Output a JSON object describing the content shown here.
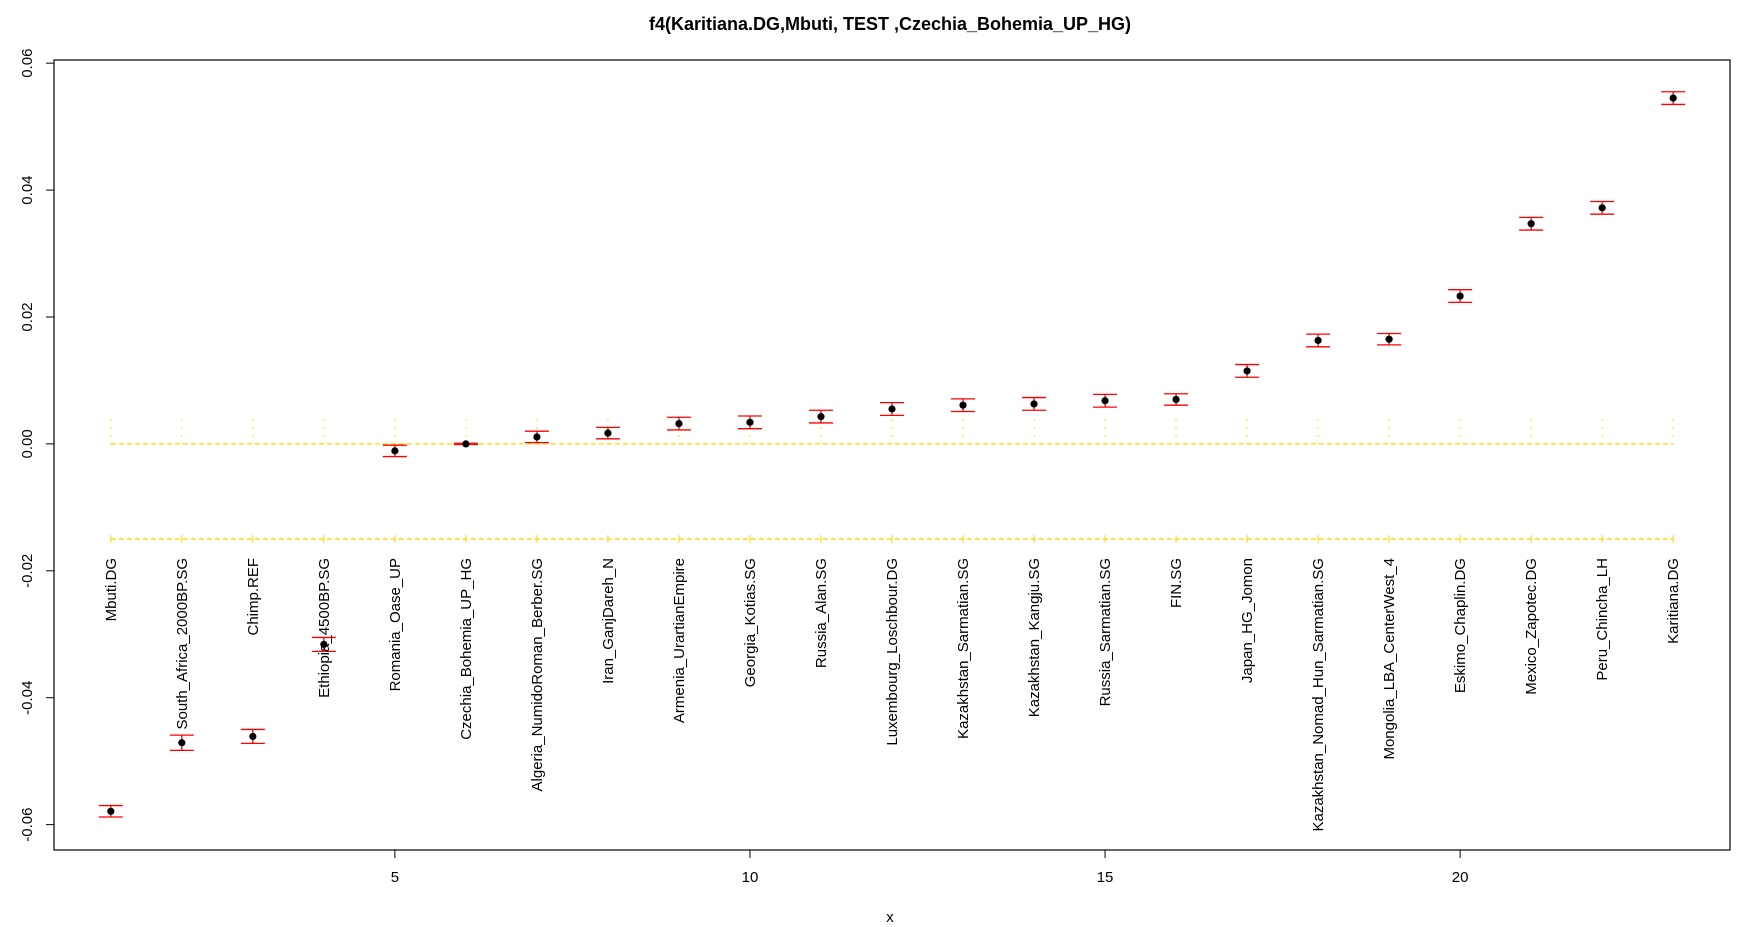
{
  "chart_data": {
    "type": "scatter",
    "title": "f4(Karitiana.DG,Mbuti, TEST ,Czechia_Bohemia_UP_HG)",
    "xlabel": "x",
    "ylabel": "",
    "xlim": [
      0.2,
      23.8
    ],
    "ylim": [
      -0.064,
      0.0605
    ],
    "x_ticks": [
      5,
      10,
      15,
      20
    ],
    "y_ticks": [
      -0.06,
      -0.04,
      -0.02,
      0.0,
      0.02,
      0.04,
      0.06
    ],
    "y_tick_labels": [
      "-0.06",
      "-0.04",
      "-0.02",
      "0.00",
      "0.02",
      "0.04",
      "0.06"
    ],
    "x_tick_labels": [
      "5",
      "10",
      "15",
      "20"
    ],
    "marker_color": "#000000",
    "errorbar_color": "#ff0000",
    "reference_line_color": "#ffd700",
    "reference_lines": [
      0.0,
      -0.015
    ],
    "points": [
      {
        "x": 1,
        "label": "Mbuti.DG",
        "y": -0.0579,
        "err": 0.0009
      },
      {
        "x": 2,
        "label": "South_Africa_2000BP.SG",
        "y": -0.0471,
        "err": 0.0012
      },
      {
        "x": 3,
        "label": "Chimp.REF",
        "y": -0.0461,
        "err": 0.0011
      },
      {
        "x": 4,
        "label": "Ethiopia_4500BP.SG",
        "y": -0.0316,
        "err": 0.0011
      },
      {
        "x": 5,
        "label": "Romania_Oase_UP",
        "y": -0.0011,
        "err": 0.0009
      },
      {
        "x": 6,
        "label": "Czechia_Bohemia_UP_HG",
        "y": 0.0,
        "err": 0.0001
      },
      {
        "x": 7,
        "label": "Algeria_NumidoRoman_Berber.SG",
        "y": 0.0011,
        "err": 0.0009
      },
      {
        "x": 8,
        "label": "Iran_GanjDareh_N",
        "y": 0.0017,
        "err": 0.0009
      },
      {
        "x": 9,
        "label": "Armenia_UrartianEmpire",
        "y": 0.0032,
        "err": 0.001
      },
      {
        "x": 10,
        "label": "Georgia_Kotias.SG",
        "y": 0.0034,
        "err": 0.001
      },
      {
        "x": 11,
        "label": "Russia_Alan.SG",
        "y": 0.0043,
        "err": 0.001
      },
      {
        "x": 12,
        "label": "Luxembourg_Loschbour.DG",
        "y": 0.0055,
        "err": 0.001
      },
      {
        "x": 13,
        "label": "Kazakhstan_Sarmatian.SG",
        "y": 0.0061,
        "err": 0.001
      },
      {
        "x": 14,
        "label": "Kazakhstan_Kangju.SG",
        "y": 0.0063,
        "err": 0.001
      },
      {
        "x": 15,
        "label": "Russia_Sarmatian.SG",
        "y": 0.0068,
        "err": 0.001
      },
      {
        "x": 16,
        "label": "FIN.SG",
        "y": 0.007,
        "err": 0.0009
      },
      {
        "x": 17,
        "label": "Japan_HG_Jomon",
        "y": 0.0115,
        "err": 0.001
      },
      {
        "x": 18,
        "label": "Kazakhstan_Nomad_Hun_Sarmatian.SG",
        "y": 0.0163,
        "err": 0.001
      },
      {
        "x": 19,
        "label": "Mongolia_LBA_CenterWest_4",
        "y": 0.0165,
        "err": 0.0009
      },
      {
        "x": 20,
        "label": "Eskimo_Chaplin.DG",
        "y": 0.0233,
        "err": 0.001
      },
      {
        "x": 21,
        "label": "Mexico_Zapotec.DG",
        "y": 0.0347,
        "err": 0.001
      },
      {
        "x": 22,
        "label": "Peru_Chincha_LH",
        "y": 0.0372,
        "err": 0.001
      },
      {
        "x": 23,
        "label": "Karitiana.DG",
        "y": 0.0545,
        "err": 0.001
      }
    ]
  }
}
